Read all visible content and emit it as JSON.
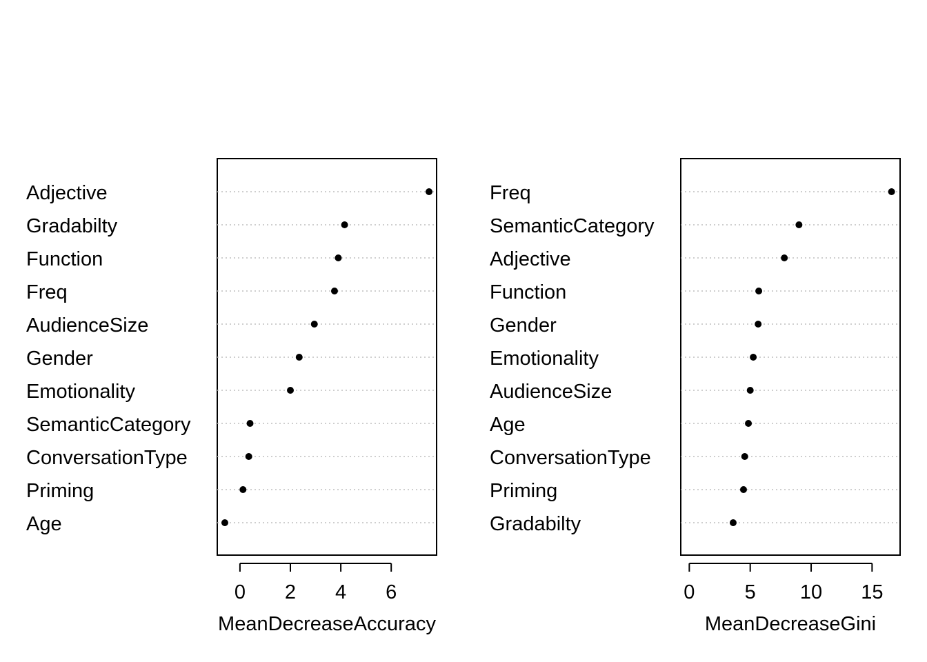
{
  "chart_data": [
    {
      "type": "scatter",
      "subtype": "dotchart",
      "xlabel": "MeanDecreaseAccuracy",
      "xlim": [
        -0.9,
        7.8
      ],
      "xticks": [
        0,
        2,
        4,
        6
      ],
      "grid": "dotted horizontal guide lines",
      "categories": [
        "Adjective",
        "Gradabilty",
        "Function",
        "Freq",
        "AudienceSize",
        "Gender",
        "Emotionality",
        "SemanticCategory",
        "ConversationType",
        "Priming",
        "Age"
      ],
      "values": [
        7.5,
        4.15,
        3.9,
        3.75,
        2.95,
        2.35,
        2.0,
        0.4,
        0.35,
        0.12,
        -0.6
      ]
    },
    {
      "type": "scatter",
      "subtype": "dotchart",
      "xlabel": "MeanDecreaseGini",
      "xlim": [
        -0.7,
        17.3
      ],
      "xticks": [
        0,
        5,
        10,
        15
      ],
      "grid": "dotted horizontal guide lines",
      "categories": [
        "Freq",
        "SemanticCategory",
        "Adjective",
        "Function",
        "Gender",
        "Emotionality",
        "AudienceSize",
        "Age",
        "ConversationType",
        "Priming",
        "Gradabilty"
      ],
      "values": [
        16.6,
        9.0,
        7.8,
        5.7,
        5.65,
        5.25,
        5.0,
        4.85,
        4.55,
        4.45,
        3.6
      ]
    }
  ]
}
